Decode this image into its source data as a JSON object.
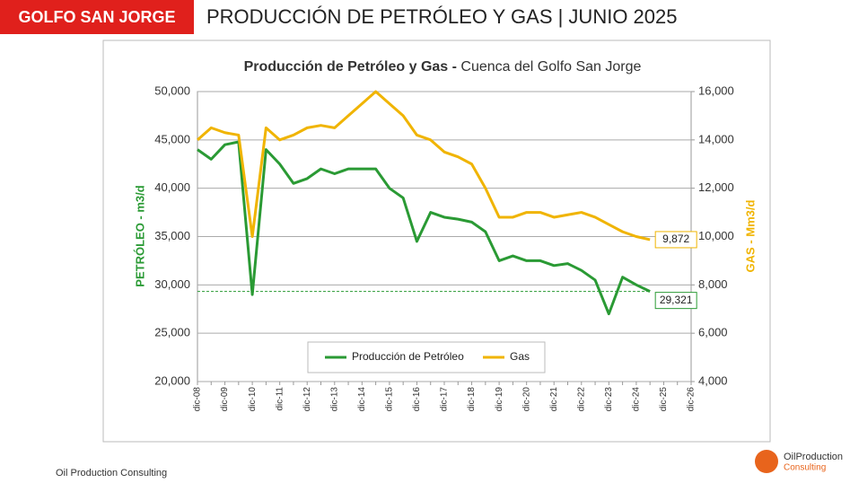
{
  "header": {
    "region": "GOLFO SAN JORGE",
    "title": "PRODUCCIÓN DE PETRÓLEO Y GAS | JUNIO 2025"
  },
  "footer": {
    "company": "Oil Production Consulting",
    "logo_line1": "OilProduction",
    "logo_line2": "Consulting"
  },
  "chart_data": {
    "type": "line",
    "title": "Producción de Petróleo y Gas -",
    "subtitle": "Cuenca del Golfo San Jorge",
    "y_label": "PETRÓLEO - m3/d",
    "y2_label": "GAS - Mm3/d",
    "categories": [
      "dic-08",
      null,
      "dic-09",
      null,
      "dic-10",
      null,
      "dic-11",
      null,
      "dic-12",
      null,
      "dic-13",
      null,
      "dic-14",
      null,
      "dic-15",
      null,
      "dic-16",
      null,
      "dic-17",
      null,
      "dic-18",
      null,
      "dic-19",
      null,
      "dic-20",
      null,
      "dic-21",
      null,
      "dic-22",
      null,
      "dic-23",
      null,
      "dic-24",
      null,
      "dic-25",
      null,
      "dic-26"
    ],
    "series": [
      {
        "name": "Producción de Petróleo",
        "color": "#2a9a34",
        "values": [
          44000,
          43000,
          44500,
          44800,
          29000,
          44000,
          42500,
          40500,
          41000,
          42000,
          41500,
          42000,
          42000,
          42000,
          40000,
          39000,
          34500,
          37500,
          37000,
          36800,
          36500,
          35500,
          32500,
          33000,
          32500,
          32500,
          32000,
          32200,
          31500,
          30500,
          27000,
          30800,
          30000,
          29321,
          null,
          null,
          null
        ],
        "value_labels": [
          null,
          null,
          null,
          null,
          null,
          null,
          null,
          null,
          null,
          null,
          null,
          null,
          null,
          null,
          null,
          null,
          null,
          null,
          null,
          null,
          null,
          null,
          null,
          null,
          null,
          null,
          null,
          null,
          null,
          null,
          null,
          null,
          null,
          "29,321",
          null,
          null,
          null
        ]
      },
      {
        "name": "Gas",
        "color": "#f0b400",
        "axis": "y2",
        "values": [
          14000,
          14500,
          14300,
          14200,
          10000,
          14500,
          14000,
          14200,
          14500,
          14600,
          14500,
          15000,
          15500,
          16000,
          15500,
          15000,
          14200,
          14000,
          13500,
          13300,
          13000,
          12000,
          10800,
          10800,
          11000,
          11000,
          10800,
          10900,
          11000,
          10800,
          10500,
          10200,
          10000,
          9872,
          null,
          null,
          null
        ],
        "value_labels": [
          null,
          null,
          null,
          null,
          null,
          null,
          null,
          null,
          null,
          null,
          null,
          null,
          null,
          null,
          null,
          null,
          null,
          null,
          null,
          null,
          null,
          null,
          null,
          null,
          null,
          null,
          null,
          null,
          null,
          null,
          null,
          null,
          null,
          "9,872",
          null,
          null,
          null
        ]
      }
    ],
    "ylim": [
      20000,
      50000
    ],
    "yticks": [
      {
        "value": 20000,
        "label": "20,000"
      },
      {
        "value": 25000,
        "label": "25,000"
      },
      {
        "value": 30000,
        "label": "30,000"
      },
      {
        "value": 35000,
        "label": "35,000"
      },
      {
        "value": 40000,
        "label": "40,000"
      },
      {
        "value": 45000,
        "label": "45,000"
      },
      {
        "value": 50000,
        "label": "50,000"
      }
    ],
    "y2lim": [
      4000,
      16000
    ],
    "y2ticks": [
      {
        "value": 4000,
        "label": "4,000"
      },
      {
        "value": 6000,
        "label": "6,000"
      },
      {
        "value": 8000,
        "label": "8,000"
      },
      {
        "value": 10000,
        "label": "10,000"
      },
      {
        "value": 12000,
        "label": "12,000"
      },
      {
        "value": 14000,
        "label": "14,000"
      },
      {
        "value": 16000,
        "label": "16,000"
      }
    ],
    "grid": true,
    "legend": "bottom"
  }
}
